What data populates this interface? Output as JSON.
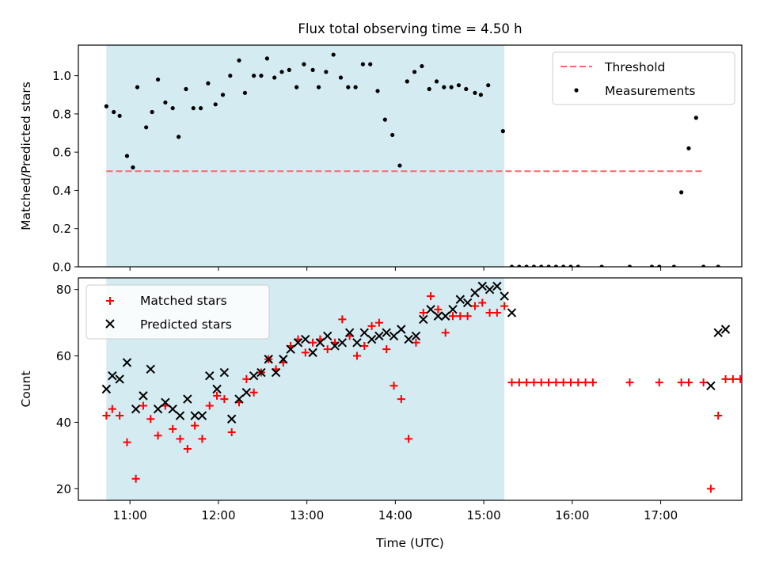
{
  "figure": {
    "title": "Flux total observing time = 4.50 h"
  },
  "colors": {
    "shade": "#add8e6",
    "threshold": "#ff6666",
    "measurement": "#000000",
    "matched": "#ff0000",
    "predicted": "#000000"
  },
  "chart_data": [
    {
      "type": "scatter",
      "ylabel": "Matched/Predicted stars",
      "xlabel": "",
      "xlim": [
        "10:25",
        "17:55"
      ],
      "ylim": [
        0,
        1.16
      ],
      "yticks": [
        "0.0",
        "0.2",
        "0.4",
        "0.6",
        "0.8",
        "1.0"
      ],
      "shaded_span": [
        "10:44",
        "15:14"
      ],
      "grid": false,
      "legend_position": "top-right",
      "legend": [
        "Threshold",
        "Measurements"
      ],
      "threshold": {
        "name": "Threshold",
        "value": 0.5,
        "x": [
          "10:44",
          "17:30"
        ]
      },
      "series": [
        {
          "name": "Measurements",
          "points": [
            [
              "10:44",
              0.84
            ],
            [
              "10:49",
              0.81
            ],
            [
              "10:53",
              0.79
            ],
            [
              "10:58",
              0.58
            ],
            [
              "11:02",
              0.52
            ],
            [
              "11:05",
              0.94
            ],
            [
              "11:11",
              0.73
            ],
            [
              "11:15",
              0.81
            ],
            [
              "11:19",
              0.98
            ],
            [
              "11:24",
              0.86
            ],
            [
              "11:29",
              0.83
            ],
            [
              "11:33",
              0.68
            ],
            [
              "11:38",
              0.93
            ],
            [
              "11:43",
              0.83
            ],
            [
              "11:48",
              0.83
            ],
            [
              "11:53",
              0.96
            ],
            [
              "11:58",
              0.85
            ],
            [
              "12:03",
              0.9
            ],
            [
              "12:08",
              1.0
            ],
            [
              "12:14",
              1.08
            ],
            [
              "12:18",
              0.91
            ],
            [
              "12:24",
              1.0
            ],
            [
              "12:29",
              1.0
            ],
            [
              "12:33",
              1.09
            ],
            [
              "12:38",
              0.99
            ],
            [
              "12:43",
              1.02
            ],
            [
              "12:48",
              1.03
            ],
            [
              "12:53",
              0.94
            ],
            [
              "12:58",
              1.06
            ],
            [
              "13:04",
              1.03
            ],
            [
              "13:08",
              0.94
            ],
            [
              "13:13",
              1.02
            ],
            [
              "13:18",
              1.11
            ],
            [
              "13:23",
              0.99
            ],
            [
              "13:28",
              0.94
            ],
            [
              "13:33",
              0.94
            ],
            [
              "13:38",
              1.06
            ],
            [
              "13:43",
              1.06
            ],
            [
              "13:48",
              0.92
            ],
            [
              "13:53",
              0.77
            ],
            [
              "13:58",
              0.69
            ],
            [
              "14:03",
              0.53
            ],
            [
              "14:08",
              0.97
            ],
            [
              "14:13",
              1.02
            ],
            [
              "14:18",
              1.05
            ],
            [
              "14:23",
              0.93
            ],
            [
              "14:28",
              0.97
            ],
            [
              "14:33",
              0.94
            ],
            [
              "14:38",
              0.94
            ],
            [
              "14:43",
              0.95
            ],
            [
              "14:48",
              0.93
            ],
            [
              "14:54",
              0.91
            ],
            [
              "14:58",
              0.9
            ],
            [
              "15:03",
              0.95
            ],
            [
              "15:13",
              0.71
            ],
            [
              "15:19",
              0.0
            ],
            [
              "15:24",
              0.0
            ],
            [
              "15:29",
              0.0
            ],
            [
              "15:34",
              0.0
            ],
            [
              "15:39",
              0.0
            ],
            [
              "15:44",
              0.0
            ],
            [
              "15:49",
              0.0
            ],
            [
              "15:54",
              0.0
            ],
            [
              "15:59",
              0.0
            ],
            [
              "16:04",
              0.0
            ],
            [
              "16:20",
              0.0
            ],
            [
              "16:39",
              0.0
            ],
            [
              "16:54",
              0.0
            ],
            [
              "16:59",
              0.0
            ],
            [
              "17:09",
              0.0
            ],
            [
              "17:14",
              0.39
            ],
            [
              "17:19",
              0.62
            ],
            [
              "17:24",
              0.78
            ],
            [
              "17:29",
              0.0
            ],
            [
              "17:39",
              0.0
            ]
          ]
        }
      ]
    },
    {
      "type": "scatter",
      "ylabel": "Count",
      "xlabel": "Time (UTC)",
      "xlim": [
        "10:25",
        "17:55"
      ],
      "ylim": [
        16.5,
        83.5
      ],
      "yticks": [
        "20",
        "40",
        "60",
        "80"
      ],
      "xticks": [
        "11:00",
        "12:00",
        "13:00",
        "14:00",
        "15:00",
        "16:00",
        "17:00"
      ],
      "shaded_span": [
        "10:44",
        "15:14"
      ],
      "grid": false,
      "legend_position": "top-left",
      "legend": [
        "Matched stars",
        "Predicted stars"
      ],
      "series": [
        {
          "name": "Matched stars",
          "points": [
            [
              "10:44",
              42
            ],
            [
              "10:48",
              44
            ],
            [
              "10:53",
              42
            ],
            [
              "10:58",
              34
            ],
            [
              "11:04",
              23
            ],
            [
              "11:09",
              45
            ],
            [
              "11:14",
              41
            ],
            [
              "11:19",
              36
            ],
            [
              "11:24",
              45
            ],
            [
              "11:29",
              38
            ],
            [
              "11:34",
              35
            ],
            [
              "11:39",
              32
            ],
            [
              "11:44",
              39
            ],
            [
              "11:49",
              35
            ],
            [
              "11:54",
              45
            ],
            [
              "11:59",
              48
            ],
            [
              "12:04",
              47
            ],
            [
              "12:09",
              37
            ],
            [
              "12:14",
              46
            ],
            [
              "12:19",
              53
            ],
            [
              "12:24",
              49
            ],
            [
              "12:29",
              55
            ],
            [
              "12:34",
              59
            ],
            [
              "12:39",
              56
            ],
            [
              "12:44",
              58
            ],
            [
              "12:49",
              63
            ],
            [
              "12:54",
              65
            ],
            [
              "12:59",
              61
            ],
            [
              "13:04",
              64
            ],
            [
              "13:09",
              65
            ],
            [
              "13:14",
              62
            ],
            [
              "13:19",
              64
            ],
            [
              "13:24",
              71
            ],
            [
              "13:29",
              66
            ],
            [
              "13:34",
              60
            ],
            [
              "13:39",
              63
            ],
            [
              "13:44",
              69
            ],
            [
              "13:49",
              70
            ],
            [
              "13:54",
              62
            ],
            [
              "13:59",
              51
            ],
            [
              "14:04",
              47
            ],
            [
              "14:09",
              35
            ],
            [
              "14:14",
              64
            ],
            [
              "14:19",
              73
            ],
            [
              "14:24",
              78
            ],
            [
              "14:29",
              74
            ],
            [
              "14:34",
              67
            ],
            [
              "14:39",
              72
            ],
            [
              "14:44",
              72
            ],
            [
              "14:49",
              72
            ],
            [
              "14:54",
              75
            ],
            [
              "14:59",
              76
            ],
            [
              "15:04",
              73
            ],
            [
              "15:09",
              73
            ],
            [
              "15:14",
              75
            ],
            [
              "15:19",
              52
            ],
            [
              "15:24",
              52
            ],
            [
              "15:29",
              52
            ],
            [
              "15:34",
              52
            ],
            [
              "15:39",
              52
            ],
            [
              "15:44",
              52
            ],
            [
              "15:49",
              52
            ],
            [
              "15:54",
              52
            ],
            [
              "15:59",
              52
            ],
            [
              "16:04",
              52
            ],
            [
              "16:09",
              52
            ],
            [
              "16:14",
              52
            ],
            [
              "16:39",
              52
            ],
            [
              "16:59",
              52
            ],
            [
              "17:14",
              52
            ],
            [
              "17:19",
              52
            ],
            [
              "17:29",
              52
            ],
            [
              "17:34",
              20
            ],
            [
              "17:39",
              42
            ],
            [
              "17:44",
              53
            ],
            [
              "17:49",
              53
            ],
            [
              "17:54",
              53
            ]
          ]
        },
        {
          "name": "Predicted stars",
          "points": [
            [
              "10:44",
              50
            ],
            [
              "10:48",
              54
            ],
            [
              "10:53",
              53
            ],
            [
              "10:58",
              58
            ],
            [
              "11:04",
              44
            ],
            [
              "11:09",
              48
            ],
            [
              "11:14",
              56
            ],
            [
              "11:19",
              44
            ],
            [
              "11:24",
              46
            ],
            [
              "11:29",
              44
            ],
            [
              "11:34",
              42
            ],
            [
              "11:39",
              47
            ],
            [
              "11:44",
              42
            ],
            [
              "11:49",
              42
            ],
            [
              "11:54",
              54
            ],
            [
              "11:59",
              50
            ],
            [
              "12:04",
              55
            ],
            [
              "12:09",
              41
            ],
            [
              "12:14",
              47
            ],
            [
              "12:19",
              49
            ],
            [
              "12:24",
              54
            ],
            [
              "12:29",
              55
            ],
            [
              "12:34",
              59
            ],
            [
              "12:39",
              55
            ],
            [
              "12:44",
              59
            ],
            [
              "12:49",
              62
            ],
            [
              "12:54",
              64
            ],
            [
              "12:59",
              65
            ],
            [
              "13:04",
              61
            ],
            [
              "13:09",
              64
            ],
            [
              "13:14",
              66
            ],
            [
              "13:19",
              63
            ],
            [
              "13:24",
              64
            ],
            [
              "13:29",
              67
            ],
            [
              "13:34",
              64
            ],
            [
              "13:39",
              67
            ],
            [
              "13:44",
              65
            ],
            [
              "13:49",
              66
            ],
            [
              "13:54",
              67
            ],
            [
              "13:59",
              66
            ],
            [
              "14:04",
              68
            ],
            [
              "14:09",
              65
            ],
            [
              "14:14",
              66
            ],
            [
              "14:19",
              71
            ],
            [
              "14:24",
              74
            ],
            [
              "14:29",
              72
            ],
            [
              "14:34",
              72
            ],
            [
              "14:39",
              74
            ],
            [
              "14:44",
              77
            ],
            [
              "14:49",
              76
            ],
            [
              "14:54",
              79
            ],
            [
              "14:59",
              81
            ],
            [
              "15:04",
              80
            ],
            [
              "15:09",
              81
            ],
            [
              "15:14",
              78
            ],
            [
              "15:19",
              73
            ],
            [
              "17:34",
              51
            ],
            [
              "17:39",
              67
            ],
            [
              "17:44",
              68
            ]
          ]
        }
      ]
    }
  ]
}
